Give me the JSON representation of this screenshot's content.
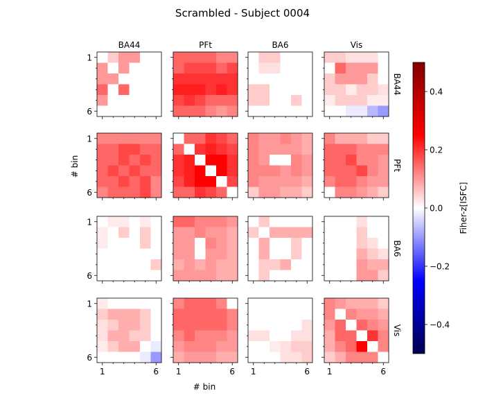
{
  "chart_data": {
    "type": "heatmap",
    "title": "Scrambled - Subject 0004",
    "xlabel": "# bin",
    "ylabel": "# bin",
    "regions": [
      "BA44",
      "PFt",
      "BA6",
      "Vis"
    ],
    "tick_labels": [
      "1",
      "6"
    ],
    "grid": false,
    "colorbar": {
      "label": "Fiher-z[ISFC]",
      "vmin": -0.5,
      "vmax": 0.5,
      "ticks": [
        0.4,
        0.2,
        0.0,
        -0.2,
        -0.4
      ],
      "tick_labels": [
        "0.4",
        "0.2",
        "0.0",
        "−0.2",
        "−0.4"
      ],
      "colormap": "seismic",
      "placement": "right"
    },
    "matrices": [
      [
        [
          [
            0,
            0.05,
            0.1,
            0.1,
            0,
            0
          ],
          [
            0.1,
            0,
            0.1,
            0,
            0,
            0
          ],
          [
            0.1,
            0.1,
            0,
            0,
            0,
            0
          ],
          [
            0.15,
            0,
            0.15,
            0,
            0,
            0
          ],
          [
            0.1,
            0,
            0,
            0,
            0,
            0
          ],
          [
            0,
            0,
            0,
            0,
            0,
            0
          ]
        ],
        [
          [
            0.15,
            0.15,
            0.15,
            0.15,
            0.12,
            0.12
          ],
          [
            0.15,
            0.18,
            0.18,
            0.18,
            0.15,
            0.18
          ],
          [
            0.2,
            0.2,
            0.2,
            0.2,
            0.2,
            0.2
          ],
          [
            0.22,
            0.22,
            0.22,
            0.2,
            0.22,
            0.2
          ],
          [
            0.18,
            0.2,
            0.18,
            0.15,
            0.15,
            0.15
          ],
          [
            0.15,
            0.15,
            0.15,
            0.12,
            0.1,
            0.12
          ]
        ],
        [
          [
            0,
            0.05,
            0.05,
            0,
            0,
            0
          ],
          [
            0,
            0.03,
            0.03,
            0,
            0,
            0
          ],
          [
            0,
            0,
            0,
            0,
            0,
            0
          ],
          [
            0.05,
            0.05,
            0,
            0,
            0,
            0
          ],
          [
            0.05,
            0.05,
            0,
            0,
            0.05,
            0
          ],
          [
            0,
            0,
            0,
            0,
            0,
            0
          ]
        ],
        [
          [
            0.05,
            0.05,
            0.03,
            0.03,
            0.03,
            0
          ],
          [
            0,
            0.15,
            0.1,
            0.1,
            0.1,
            0
          ],
          [
            0.05,
            0.1,
            0.1,
            0.1,
            0.05,
            0
          ],
          [
            0.05,
            0.05,
            0.02,
            0.05,
            0.05,
            0.03
          ],
          [
            0.02,
            0.05,
            0.05,
            0.05,
            0.02,
            0.02
          ],
          [
            0,
            0,
            -0.02,
            -0.02,
            -0.07,
            -0.1
          ]
        ]
      ],
      [
        [
          [
            0.12,
            0.12,
            0.12,
            0.12,
            0.12,
            0.12
          ],
          [
            0.15,
            0.15,
            0.18,
            0.18,
            0.15,
            0.15
          ],
          [
            0.15,
            0.15,
            0.18,
            0.15,
            0.18,
            0.15
          ],
          [
            0.15,
            0.18,
            0.15,
            0.18,
            0.15,
            0.15
          ],
          [
            0.15,
            0.15,
            0.18,
            0.15,
            0.18,
            0.12
          ],
          [
            0.12,
            0.15,
            0.15,
            0.15,
            0.18,
            0.12
          ]
        ],
        [
          [
            0,
            0.15,
            0.15,
            0.2,
            0.18,
            0.15
          ],
          [
            0.15,
            0,
            0.2,
            0.22,
            0.2,
            0.18
          ],
          [
            0.2,
            0.22,
            0,
            0.25,
            0.25,
            0.2
          ],
          [
            0.2,
            0.22,
            0.25,
            0,
            0.25,
            0.2
          ],
          [
            0.18,
            0.22,
            0.25,
            0.25,
            0,
            0.18
          ],
          [
            0.15,
            0.15,
            0.2,
            0.18,
            0.15,
            0
          ]
        ],
        [
          [
            0.12,
            0.1,
            0.1,
            0.12,
            0.1,
            0.08
          ],
          [
            0.12,
            0.1,
            0.1,
            0.1,
            0.1,
            0.08
          ],
          [
            0.12,
            0.1,
            0,
            0,
            0.12,
            0.1
          ],
          [
            0.12,
            0.12,
            0.12,
            0.1,
            0.12,
            0.1
          ],
          [
            0.12,
            0.1,
            0.1,
            0.1,
            0.1,
            0.08
          ],
          [
            0.05,
            0.1,
            0.1,
            0.08,
            0.08,
            0.05
          ]
        ],
        [
          [
            0.12,
            0.08,
            0.08,
            0.08,
            0.05,
            0.05
          ],
          [
            0.15,
            0.15,
            0.15,
            0.12,
            0.12,
            0.12
          ],
          [
            0.15,
            0.15,
            0.18,
            0.12,
            0.12,
            0.1
          ],
          [
            0.15,
            0.15,
            0.15,
            0.18,
            0.12,
            0.1
          ],
          [
            0.12,
            0.15,
            0.15,
            0.12,
            0.1,
            0.1
          ],
          [
            0,
            0.12,
            0.12,
            0.1,
            0.08,
            0.05
          ]
        ]
      ],
      [
        [
          [
            0,
            0.02,
            0.02,
            0,
            0.02,
            0
          ],
          [
            0.02,
            0,
            0.05,
            0,
            0.05,
            0
          ],
          [
            0.02,
            0,
            0,
            0,
            0.05,
            0
          ],
          [
            0,
            0,
            0,
            0,
            0,
            0
          ],
          [
            0,
            0,
            0,
            0,
            0,
            0.05
          ],
          [
            0,
            0,
            0,
            0,
            0,
            0
          ]
        ],
        [
          [
            0.15,
            0.15,
            0.12,
            0.12,
            0.12,
            0.1
          ],
          [
            0.1,
            0.1,
            0.12,
            0.1,
            0.1,
            0.08
          ],
          [
            0.1,
            0.1,
            0,
            0.12,
            0.1,
            0.08
          ],
          [
            0.1,
            0.1,
            0,
            0.1,
            0.1,
            0.08
          ],
          [
            0.08,
            0.1,
            0.08,
            0.1,
            0.08,
            0.08
          ],
          [
            0.1,
            0.1,
            0.1,
            0.1,
            0.08,
            0.08
          ]
        ],
        [
          [
            0,
            0.05,
            0,
            0,
            0,
            0
          ],
          [
            0.05,
            0,
            0.08,
            0.08,
            0.08,
            0.08
          ],
          [
            0,
            0.08,
            0,
            0,
            0.05,
            0
          ],
          [
            0,
            0.08,
            0,
            0,
            0.05,
            0
          ],
          [
            0,
            0.05,
            0.05,
            0.08,
            0,
            0
          ],
          [
            0,
            0.05,
            0,
            0,
            0,
            0
          ]
        ],
        [
          [
            0,
            0,
            0,
            0.03,
            0,
            0
          ],
          [
            0,
            0,
            0,
            0.05,
            0,
            0
          ],
          [
            0,
            0,
            0,
            0.05,
            0.03,
            0
          ],
          [
            0,
            0,
            0,
            0.08,
            0.05,
            0.03
          ],
          [
            0,
            0,
            0,
            0.1,
            0.08,
            0.08
          ],
          [
            0,
            0,
            0,
            0.1,
            0.1,
            0.05
          ]
        ]
      ],
      [
        [
          [
            0.02,
            0,
            0,
            0,
            0,
            0
          ],
          [
            0.05,
            0.08,
            0.08,
            0.08,
            0.05,
            0
          ],
          [
            0.03,
            0.05,
            0.08,
            0.08,
            0.05,
            0
          ],
          [
            0.03,
            0.08,
            0.08,
            0.05,
            0.05,
            0
          ],
          [
            0.02,
            0.05,
            0.08,
            0.08,
            0,
            -0.02
          ],
          [
            0,
            0,
            0,
            0,
            -0.02,
            -0.1
          ]
        ],
        [
          [
            0.12,
            0.15,
            0.15,
            0.15,
            0.12,
            0
          ],
          [
            0.15,
            0.15,
            0.15,
            0.15,
            0.15,
            0.12
          ],
          [
            0.15,
            0.15,
            0.15,
            0.15,
            0.15,
            0.12
          ],
          [
            0.12,
            0.15,
            0.12,
            0.12,
            0.12,
            0.1
          ],
          [
            0.1,
            0.12,
            0.12,
            0.12,
            0.1,
            0.1
          ],
          [
            0.08,
            0.1,
            0.1,
            0.1,
            0.08,
            0.08
          ]
        ],
        [
          [
            0,
            0,
            0,
            0,
            0,
            0
          ],
          [
            0,
            0,
            0,
            0,
            0,
            0
          ],
          [
            0,
            0,
            0,
            0,
            0,
            0.03
          ],
          [
            0.03,
            0.03,
            0,
            0,
            0.03,
            0.03
          ],
          [
            0,
            0,
            0.02,
            0.03,
            0.05,
            0.05
          ],
          [
            0,
            0,
            0,
            0.03,
            0.03,
            0.05
          ]
        ],
        [
          [
            0.12,
            0.1,
            0.08,
            0.08,
            0.08,
            0.05
          ],
          [
            0.12,
            0,
            0.12,
            0.1,
            0.1,
            0.08
          ],
          [
            0.1,
            0.15,
            0,
            0.15,
            0.12,
            0.1
          ],
          [
            0.08,
            0.15,
            0.15,
            0,
            0.2,
            0.12
          ],
          [
            0.08,
            0.12,
            0.15,
            0.25,
            0,
            0.12
          ],
          [
            0.05,
            0.08,
            0.12,
            0.12,
            0.12,
            0
          ]
        ]
      ]
    ]
  }
}
